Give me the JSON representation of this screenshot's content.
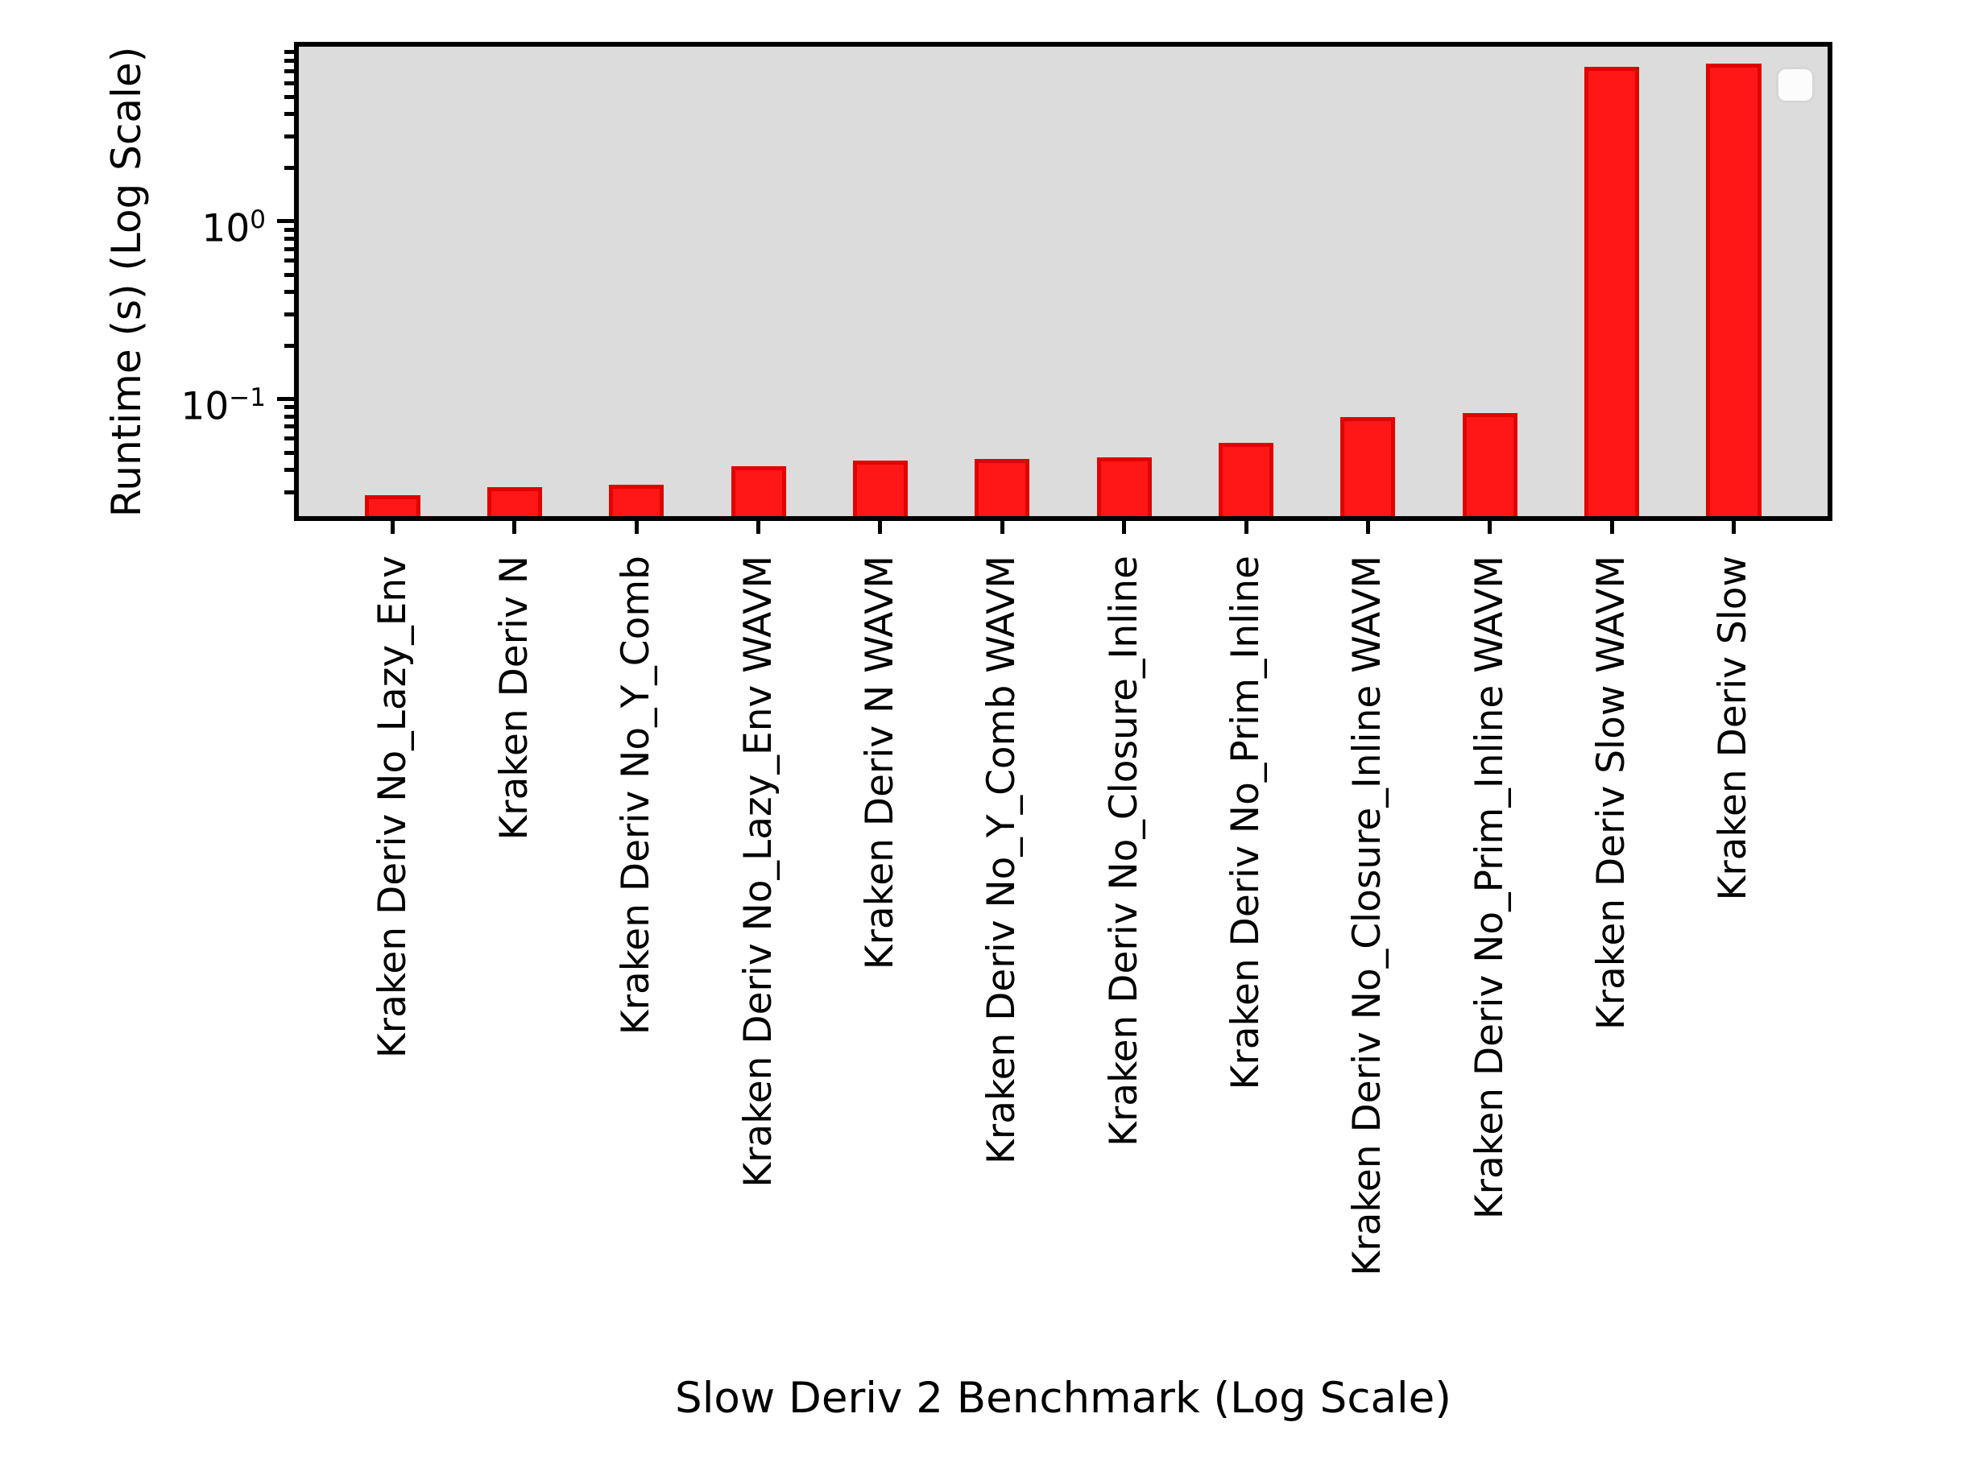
{
  "axes": {
    "ylabel": "Runtime (s) (Log Scale)",
    "xlabel": "Slow Deriv 2 Benchmark (Log Scale)",
    "yscale": "log",
    "ylim": [
      0.022,
      9.6
    ],
    "y_major_ticks": [
      {
        "value": 1,
        "base": "10",
        "exp": "0",
        "label": "10⁰"
      },
      {
        "value": 0.1,
        "base": "10",
        "exp": "−1",
        "label": "10⁻¹"
      }
    ],
    "y_minor_ticks": [
      9,
      8,
      7,
      6,
      5,
      4,
      3,
      2,
      0.9,
      0.8,
      0.7,
      0.6,
      0.5,
      0.4,
      0.3,
      0.2,
      0.09,
      0.08,
      0.07,
      0.06,
      0.05,
      0.04,
      0.03
    ]
  },
  "legend": {
    "visible": true,
    "entries": []
  },
  "colors": {
    "figure_bg": "#ffffff",
    "plot_bg": "#dcdcdc",
    "bar_fill": "#ff1616",
    "bar_edge": "#e00400",
    "spine": "#000000",
    "legend_bg": "#fcfcfc",
    "legend_border": "#d6d6d6"
  },
  "chart_data": {
    "type": "bar",
    "title": "",
    "xlabel": "Slow Deriv 2 Benchmark (Log Scale)",
    "ylabel": "Runtime (s) (Log Scale)",
    "yscale": "log",
    "ylim": [
      0.022,
      9.6
    ],
    "grid": false,
    "legend_position": "upper right (empty box)",
    "bar_color": "#ff1616",
    "categories": [
      "Kraken Deriv No_Lazy_Env",
      "Kraken Deriv N",
      "Kraken Deriv No_Y_Comb",
      "Kraken Deriv No_Lazy_Env WAVM",
      "Kraken Deriv N WAVM",
      "Kraken Deriv No_Y_Comb WAVM",
      "Kraken Deriv No_Closure_Inline",
      "Kraken Deriv No_Prim_Inline",
      "Kraken Deriv No_Closure_Inline WAVM",
      "Kraken Deriv No_Prim_Inline WAVM",
      "Kraken Deriv Slow WAVM",
      "Kraken Deriv Slow"
    ],
    "values": [
      0.029,
      0.032,
      0.033,
      0.042,
      0.045,
      0.046,
      0.047,
      0.057,
      0.079,
      0.084,
      7.4,
      7.7
    ]
  }
}
